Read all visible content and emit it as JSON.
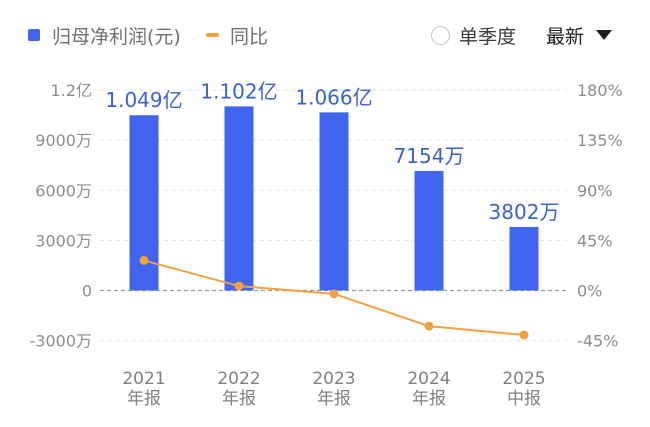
{
  "legend": {
    "bar_label": "归母净利润(元)",
    "line_label": "同比",
    "bar_color": "#4065ee",
    "line_color": "#f0a140"
  },
  "controls": {
    "quarter_toggle": "单季度",
    "quarter_selected": false,
    "period_select": "最新"
  },
  "chart_data": {
    "type": "bar",
    "categories": [
      "2021\n年报",
      "2022\n年报",
      "2023\n年报",
      "2024\n年报",
      "2025\n中报"
    ],
    "series": [
      {
        "name": "归母净利润(元)",
        "type": "bar",
        "axis": "left",
        "values": [
          104900000,
          110200000,
          106600000,
          71540000,
          38020000
        ],
        "data_labels": [
          "1.049亿",
          "1.102亿",
          "1.066亿",
          "7154万",
          "3802万"
        ]
      },
      {
        "name": "同比",
        "type": "line",
        "axis": "right",
        "values": [
          27,
          4,
          -3,
          -32,
          -40
        ],
        "data_labels": []
      }
    ],
    "left_axis": {
      "ylim": [
        -30000000,
        120000000
      ],
      "ticks": [
        120000000,
        90000000,
        60000000,
        30000000,
        0,
        -30000000
      ],
      "tick_labels": [
        "1.2亿",
        "9000万",
        "6000万",
        "3000万",
        "0",
        "-3000万"
      ]
    },
    "right_axis": {
      "ylim": [
        -45,
        180
      ],
      "ticks": [
        180,
        135,
        90,
        45,
        0,
        -45
      ],
      "tick_labels": [
        "180%",
        "135%",
        "90%",
        "45%",
        "0%",
        "-45%"
      ]
    },
    "grid": true,
    "legend_position": "top-left"
  }
}
